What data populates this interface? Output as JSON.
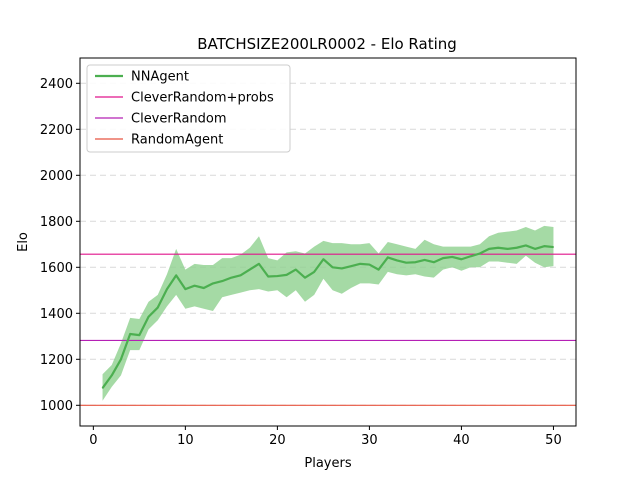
{
  "chart_data": {
    "type": "line",
    "title": "BATCHSIZE200LR0002 - Elo Rating",
    "xlabel": "Players",
    "ylabel": "Elo",
    "xlim": [
      -1.45,
      52.45
    ],
    "ylim": [
      910,
      2510
    ],
    "xticks": [
      0,
      10,
      20,
      30,
      40,
      50
    ],
    "yticks": [
      1000,
      1200,
      1400,
      1600,
      1800,
      2000,
      2200,
      2400
    ],
    "grid": "y-dashed",
    "legend_position": "top-left",
    "x": [
      1,
      2,
      3,
      4,
      5,
      6,
      7,
      8,
      9,
      10,
      11,
      12,
      13,
      14,
      15,
      16,
      17,
      18,
      19,
      20,
      21,
      22,
      23,
      24,
      25,
      26,
      27,
      28,
      29,
      30,
      31,
      32,
      33,
      34,
      35,
      36,
      37,
      38,
      39,
      40,
      41,
      42,
      43,
      44,
      45,
      46,
      47,
      48,
      49,
      50
    ],
    "series": [
      {
        "name": "NNAgent",
        "color": "#4caf50",
        "band_color": "#8fd18f",
        "values": [
          1075,
          1130,
          1200,
          1310,
          1305,
          1385,
          1425,
          1505,
          1565,
          1505,
          1520,
          1510,
          1530,
          1540,
          1555,
          1565,
          1590,
          1615,
          1560,
          1562,
          1567,
          1590,
          1555,
          1580,
          1635,
          1600,
          1595,
          1605,
          1615,
          1612,
          1590,
          1643,
          1630,
          1620,
          1622,
          1632,
          1622,
          1640,
          1645,
          1635,
          1648,
          1660,
          1680,
          1685,
          1680,
          1685,
          1695,
          1680,
          1692,
          1688
        ],
        "lower": [
          1020,
          1080,
          1130,
          1240,
          1240,
          1330,
          1370,
          1430,
          1480,
          1420,
          1430,
          1420,
          1410,
          1470,
          1480,
          1490,
          1500,
          1505,
          1495,
          1500,
          1470,
          1500,
          1450,
          1480,
          1550,
          1500,
          1485,
          1510,
          1530,
          1530,
          1525,
          1580,
          1570,
          1565,
          1570,
          1560,
          1555,
          1590,
          1600,
          1585,
          1600,
          1600,
          1625,
          1625,
          1620,
          1615,
          1650,
          1620,
          1600,
          1605
        ],
        "upper": [
          1135,
          1175,
          1270,
          1380,
          1375,
          1450,
          1480,
          1570,
          1680,
          1590,
          1615,
          1610,
          1610,
          1640,
          1640,
          1655,
          1685,
          1735,
          1640,
          1630,
          1665,
          1670,
          1660,
          1690,
          1715,
          1705,
          1705,
          1700,
          1700,
          1705,
          1660,
          1710,
          1700,
          1690,
          1680,
          1720,
          1700,
          1690,
          1690,
          1690,
          1690,
          1700,
          1735,
          1750,
          1755,
          1760,
          1775,
          1760,
          1780,
          1775
        ]
      }
    ],
    "reference_lines": [
      {
        "name": "CleverRandom+probs",
        "value": 1657,
        "color": "#e0148c"
      },
      {
        "name": "CleverRandom",
        "value": 1282,
        "color": "#b520b5"
      },
      {
        "name": "RandomAgent",
        "value": 1000,
        "color": "#e85540"
      }
    ]
  }
}
